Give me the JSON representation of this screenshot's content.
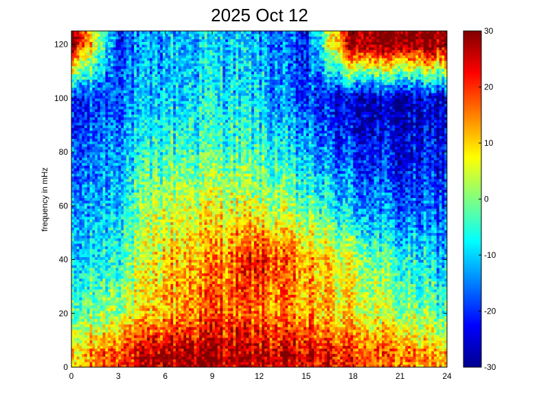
{
  "chart_data": {
    "type": "heatmap",
    "title": "2025 Oct 12",
    "xlabel": "",
    "ylabel": "frequency in mHz",
    "xlim": [
      0,
      24
    ],
    "ylim": [
      0,
      125
    ],
    "x_ticks": [
      0,
      3,
      6,
      9,
      12,
      15,
      18,
      21,
      24
    ],
    "y_ticks": [
      0,
      20,
      40,
      60,
      80,
      100,
      120
    ],
    "colorbar": {
      "colormap": "jet",
      "range": [
        -30,
        30
      ],
      "ticks": [
        30,
        20,
        10,
        0,
        -10,
        -20,
        -30
      ]
    },
    "grid": false,
    "approximate_structure": {
      "x_bins": [
        0,
        3,
        6,
        9,
        12,
        15,
        18,
        21,
        24
      ],
      "y_bins": [
        5,
        20,
        40,
        60,
        80,
        100,
        120
      ],
      "values": [
        [
          8,
          20,
          28,
          28,
          26,
          24,
          20,
          16,
          10
        ],
        [
          -4,
          4,
          12,
          18,
          16,
          12,
          8,
          2,
          -4
        ],
        [
          -12,
          -4,
          10,
          14,
          22,
          12,
          4,
          -6,
          -12
        ],
        [
          -16,
          -8,
          4,
          6,
          4,
          -2,
          -12,
          -18,
          -18
        ],
        [
          -20,
          -12,
          -4,
          -2,
          -4,
          -12,
          -20,
          -24,
          -22
        ],
        [
          -24,
          -16,
          -10,
          -8,
          -10,
          -20,
          -26,
          -28,
          -26
        ],
        [
          30,
          -18,
          -12,
          -10,
          -12,
          -22,
          30,
          30,
          30
        ]
      ]
    }
  }
}
